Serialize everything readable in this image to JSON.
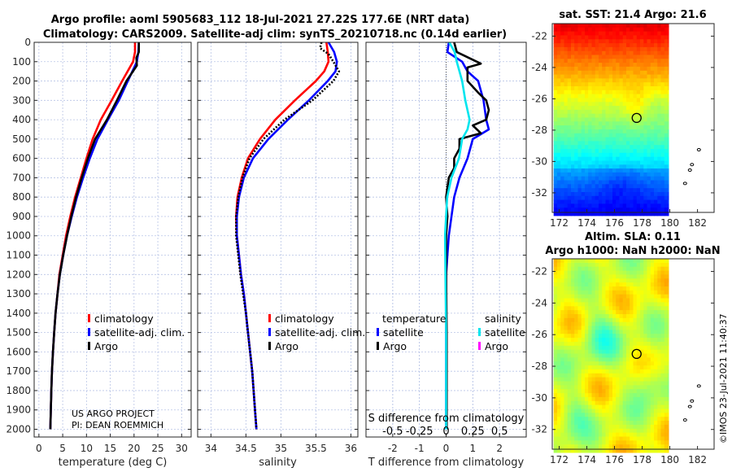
{
  "header": {
    "title_line1": "Argo profile: aoml 5905683_112 18-Jul-2021 27.22S 177.6E (NRT data)",
    "title_line2": "Climatology: CARS2009. Satellite-adj clim: synTS_20210718.nc (0.14d earlier)"
  },
  "credits": {
    "line1": "US ARGO PROJECT",
    "line2": "PI: DEAN ROEMMICH"
  },
  "copyright": "©IMOS 23-Jul-2021 11:40:37",
  "colors": {
    "climatology": "#ff0000",
    "satellite": "#0000ff",
    "argo": "#000000",
    "sal_satellite": "#00e5ee",
    "sal_argo": "#ff00ff"
  },
  "chart_data": [
    {
      "type": "line",
      "id": "temperature",
      "xlabel": "temperature (deg C)",
      "ylabel": "",
      "xlim": [
        -1,
        32
      ],
      "ylim": [
        2040,
        0
      ],
      "xticks": [
        0,
        5,
        10,
        15,
        20,
        25,
        30
      ],
      "yticks": [
        0,
        100,
        200,
        300,
        400,
        500,
        600,
        700,
        800,
        900,
        1000,
        1100,
        1200,
        1300,
        1400,
        1500,
        1600,
        1700,
        1800,
        1900,
        2000
      ],
      "grid": true,
      "legend": {
        "placement": "lower-middle",
        "entries": [
          "climatology",
          "satellite-adj. clim.",
          "Argo"
        ]
      },
      "series": [
        {
          "name": "climatology",
          "color": "#ff0000",
          "depth": [
            0,
            50,
            100,
            200,
            300,
            400,
            500,
            600,
            700,
            800,
            900,
            1000,
            1100,
            1200,
            1300,
            1400,
            1500,
            1600,
            1700,
            1800,
            1900,
            2000
          ],
          "values": [
            20.2,
            20.2,
            19.8,
            17.5,
            15.3,
            13.0,
            11.3,
            10.0,
            8.8,
            7.6,
            6.6,
            5.7,
            5.0,
            4.3,
            3.9,
            3.5,
            3.2,
            2.95,
            2.75,
            2.6,
            2.5,
            2.4
          ]
        },
        {
          "name": "satellite-adj. clim.",
          "color": "#0000ff",
          "depth": [
            0,
            50,
            100,
            200,
            300,
            400,
            500,
            600,
            700,
            800,
            900,
            1000,
            1100,
            1200,
            1300,
            1400,
            1500,
            1600,
            1700,
            1800,
            1900,
            2000
          ],
          "values": [
            21.0,
            20.9,
            20.6,
            18.7,
            16.8,
            14.5,
            12.3,
            10.7,
            9.3,
            8.0,
            6.9,
            5.9,
            5.1,
            4.4,
            3.9,
            3.5,
            3.2,
            2.95,
            2.75,
            2.6,
            2.5,
            2.4
          ]
        },
        {
          "name": "Argo",
          "color": "#000000",
          "depth": [
            0,
            50,
            80,
            120,
            200,
            300,
            400,
            500,
            600,
            700,
            800,
            900,
            1000,
            1100,
            1200,
            1300,
            1400,
            1500,
            1600,
            1700,
            1800,
            1900,
            2000
          ],
          "values": [
            21.0,
            21.0,
            20.5,
            20.6,
            18.4,
            16.4,
            14.3,
            11.8,
            10.3,
            9.0,
            7.8,
            6.8,
            5.9,
            5.1,
            4.4,
            3.9,
            3.5,
            3.2,
            2.95,
            2.75,
            2.6,
            2.5,
            2.4
          ]
        }
      ]
    },
    {
      "type": "line",
      "id": "salinity",
      "xlabel": "salinity",
      "xlim": [
        33.81,
        36.1
      ],
      "ylim": [
        2040,
        0
      ],
      "xticks": [
        34,
        34.5,
        35,
        35.5,
        36
      ],
      "grid": true,
      "legend": {
        "placement": "lower-middle",
        "entries": [
          "climatology",
          "satellite-adj. clim.",
          "Argo"
        ]
      },
      "series": [
        {
          "name": "climatology",
          "color": "#ff0000",
          "depth": [
            0,
            50,
            100,
            150,
            200,
            300,
            400,
            500,
            600,
            700,
            800,
            900,
            1000,
            1100,
            1200,
            1300,
            1400,
            1500,
            1600,
            1700,
            1800,
            1900,
            2000
          ],
          "values": [
            35.65,
            35.67,
            35.68,
            35.62,
            35.5,
            35.2,
            34.92,
            34.7,
            34.53,
            34.44,
            34.38,
            34.36,
            34.37,
            34.4,
            34.43,
            34.47,
            34.5,
            34.53,
            34.56,
            34.59,
            34.61,
            34.63,
            34.65
          ]
        },
        {
          "name": "satellite-adj. clim.",
          "color": "#0000ff",
          "depth": [
            0,
            50,
            100,
            150,
            200,
            300,
            400,
            500,
            600,
            700,
            800,
            900,
            1000,
            1100,
            1200,
            1300,
            1400,
            1500,
            1600,
            1700,
            1800,
            1900,
            2000
          ],
          "values": [
            35.68,
            35.76,
            35.8,
            35.78,
            35.67,
            35.4,
            35.1,
            34.82,
            34.6,
            34.47,
            34.4,
            34.37,
            34.37,
            34.4,
            34.43,
            34.47,
            34.5,
            34.53,
            34.56,
            34.59,
            34.61,
            34.63,
            34.65
          ]
        },
        {
          "name": "Argo",
          "color": "#000000",
          "dashed": true,
          "depth": [
            0,
            30,
            60,
            100,
            150,
            200,
            300,
            400,
            500,
            600,
            700,
            800,
            900,
            1000,
            1100,
            1200,
            1300,
            1400,
            1500,
            1600,
            1700,
            1800,
            1900,
            2000
          ],
          "values": [
            35.58,
            35.56,
            35.68,
            35.75,
            35.83,
            35.75,
            35.45,
            35.05,
            34.75,
            34.55,
            34.45,
            34.39,
            34.36,
            34.36,
            34.39,
            34.42,
            34.46,
            34.5,
            34.53,
            34.56,
            34.59,
            34.61,
            34.63,
            34.65
          ]
        }
      ]
    },
    {
      "type": "line",
      "id": "differences",
      "xlabel": "T difference from climatology",
      "xlabel_top": "S difference from climatology",
      "xlim": [
        -3,
        3
      ],
      "xlim_s": [
        -0.75,
        0.75
      ],
      "xticks": [
        -2,
        -1,
        0,
        1,
        2
      ],
      "xticks_s": [
        -0.5,
        -0.25,
        0,
        0.25,
        0.5
      ],
      "xticklabels_s": [
        "-0.5",
        "-0.25",
        "0",
        "0.25",
        "0.5"
      ],
      "ylim": [
        2040,
        0
      ],
      "grid": true,
      "legend": {
        "placement": "lower",
        "groups": [
          {
            "heading": "temperature",
            "entries": [
              "satellite",
              "Argo"
            ]
          },
          {
            "heading": "salinity",
            "entries": [
              "satellite",
              "Argo"
            ]
          }
        ]
      },
      "series": [
        {
          "name": "temperature satellite",
          "axis": "T",
          "color": "#0000ff",
          "depth": [
            0,
            50,
            100,
            150,
            200,
            300,
            400,
            450,
            500,
            600,
            700,
            800,
            900,
            1000,
            1100,
            1200,
            1500,
            2000
          ],
          "values": [
            0.1,
            0.05,
            0.6,
            0.8,
            1.2,
            1.4,
            1.5,
            1.6,
            1.0,
            0.8,
            0.5,
            0.3,
            0.2,
            0.1,
            0.05,
            0.0,
            0.0,
            0.0
          ]
        },
        {
          "name": "temperature Argo",
          "axis": "T",
          "color": "#000000",
          "depth": [
            0,
            50,
            90,
            110,
            130,
            200,
            260,
            300,
            350,
            400,
            430,
            470,
            500,
            550,
            600,
            650,
            700,
            800,
            900,
            1000,
            1200,
            1500,
            2000
          ],
          "values": [
            0.3,
            0.4,
            1.0,
            1.3,
            0.8,
            0.8,
            1.2,
            1.5,
            1.6,
            1.5,
            1.0,
            1.3,
            0.5,
            0.5,
            0.3,
            0.3,
            0.1,
            0.0,
            0.05,
            0.0,
            0.0,
            0.02,
            0.02
          ]
        },
        {
          "name": "salinity satellite",
          "axis": "S",
          "color": "#00e5ee",
          "depth": [
            0,
            50,
            100,
            200,
            300,
            400,
            450,
            500,
            600,
            700,
            800,
            900,
            1000,
            1500,
            2000
          ],
          "values": [
            0.03,
            0.08,
            0.1,
            0.15,
            0.18,
            0.22,
            0.2,
            0.15,
            0.12,
            0.05,
            0.01,
            0.0,
            -0.01,
            0.0,
            0.0
          ]
        },
        {
          "name": "salinity Argo",
          "axis": "S",
          "color": "#ff00ff",
          "depth": [],
          "values": []
        }
      ]
    },
    {
      "type": "heatmap",
      "id": "sst-map",
      "title": "sat. SST: 21.4 Argo: 21.6",
      "xlim": [
        171.5,
        183.2
      ],
      "ylim": [
        -33.25,
        -21.2
      ],
      "xticks": [
        172,
        174,
        176,
        178,
        180,
        182
      ],
      "yticks": [
        -22,
        -24,
        -26,
        -28,
        -30,
        -32
      ],
      "data_extent_lon": [
        171.6,
        179.9
      ],
      "profile_location": {
        "lon": 177.6,
        "lat": -27.22
      }
    },
    {
      "type": "heatmap",
      "id": "sla-map",
      "title_line1": "Altim. SLA: 0.11",
      "title_line2": "Argo h1000: NaN h2000: NaN",
      "xlim": [
        171.5,
        183.2
      ],
      "ylim": [
        -33.25,
        -21.2
      ],
      "xticks": [
        172,
        174,
        176,
        178,
        180,
        182
      ],
      "yticks": [
        -22,
        -24,
        -26,
        -28,
        -30,
        -32
      ],
      "data_extent_lon": [
        171.6,
        179.9
      ],
      "profile_location": {
        "lon": 177.6,
        "lat": -27.22
      }
    }
  ]
}
